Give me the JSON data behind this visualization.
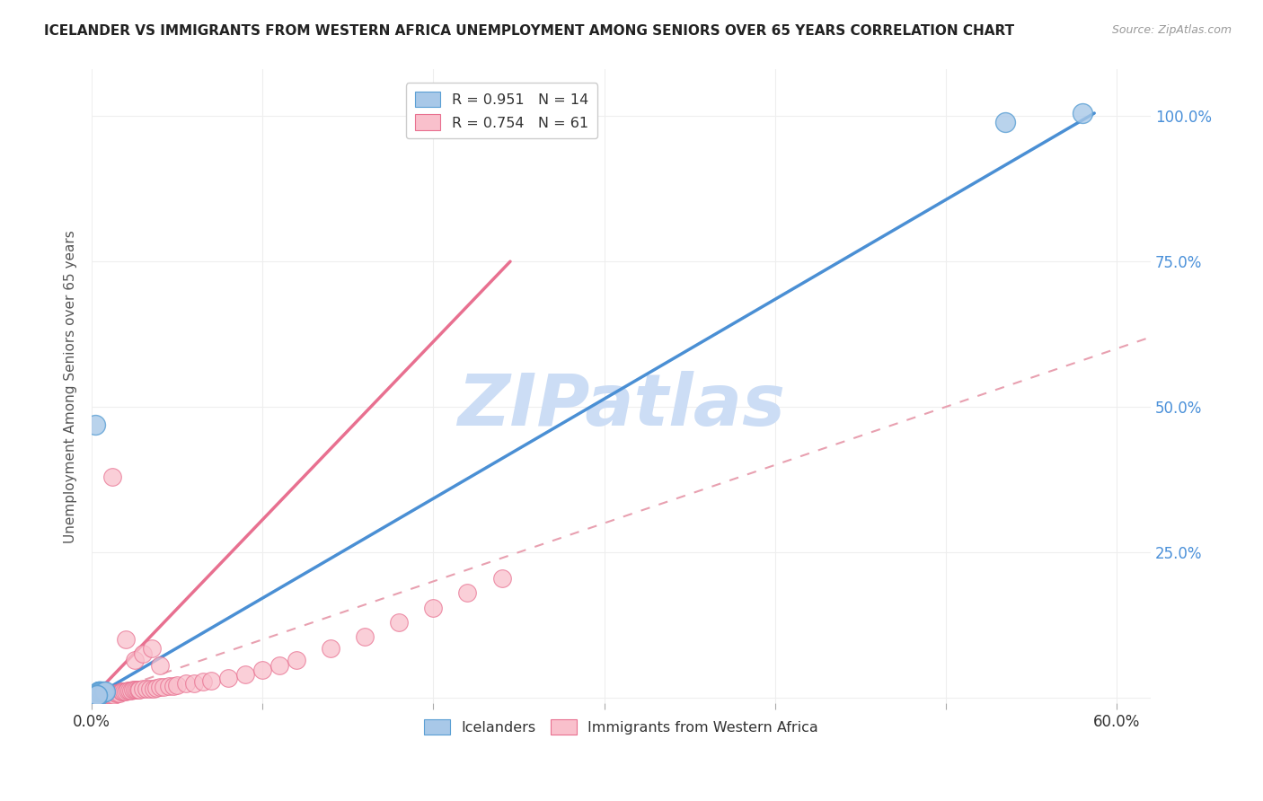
{
  "title": "ICELANDER VS IMMIGRANTS FROM WESTERN AFRICA UNEMPLOYMENT AMONG SENIORS OVER 65 YEARS CORRELATION CHART",
  "source": "Source: ZipAtlas.com",
  "ylabel": "Unemployment Among Seniors over 65 years",
  "xlim": [
    0.0,
    0.62
  ],
  "ylim": [
    -0.01,
    1.08
  ],
  "legend_blue_label": "R = 0.951   N = 14",
  "legend_pink_label": "R = 0.754   N = 61",
  "legend_bottom_blue": "Icelanders",
  "legend_bottom_pink": "Immigrants from Western Africa",
  "blue_color": "#a8c8e8",
  "pink_color": "#f9c0cc",
  "blue_edge_color": "#5a9fd4",
  "pink_edge_color": "#e87090",
  "blue_line_color": "#4a8fd4",
  "pink_line_color": "#e87090",
  "diagonal_color": "#e8a0b0",
  "watermark_color": "#ccddf5",
  "blue_scatter_x": [
    0.002,
    0.004,
    0.004,
    0.004,
    0.004,
    0.005,
    0.005,
    0.006,
    0.007,
    0.008,
    0.003,
    0.003,
    0.535,
    0.58
  ],
  "blue_scatter_y": [
    0.47,
    0.005,
    0.01,
    0.01,
    0.01,
    0.01,
    0.01,
    0.01,
    0.01,
    0.01,
    0.005,
    0.005,
    0.99,
    1.005
  ],
  "pink_scatter_x": [
    0.001,
    0.002,
    0.003,
    0.004,
    0.005,
    0.005,
    0.006,
    0.007,
    0.007,
    0.008,
    0.009,
    0.01,
    0.011,
    0.012,
    0.013,
    0.014,
    0.015,
    0.016,
    0.017,
    0.018,
    0.019,
    0.02,
    0.021,
    0.022,
    0.023,
    0.024,
    0.025,
    0.026,
    0.027,
    0.028,
    0.03,
    0.032,
    0.034,
    0.036,
    0.038,
    0.04,
    0.042,
    0.045,
    0.048,
    0.05,
    0.055,
    0.06,
    0.065,
    0.07,
    0.08,
    0.09,
    0.1,
    0.11,
    0.12,
    0.14,
    0.16,
    0.18,
    0.2,
    0.22,
    0.24,
    0.012,
    0.02,
    0.025,
    0.03,
    0.035,
    0.04
  ],
  "pink_scatter_y": [
    0.005,
    0.005,
    0.005,
    0.005,
    0.005,
    0.005,
    0.005,
    0.005,
    0.005,
    0.005,
    0.005,
    0.005,
    0.005,
    0.005,
    0.005,
    0.008,
    0.008,
    0.008,
    0.01,
    0.01,
    0.01,
    0.01,
    0.012,
    0.012,
    0.012,
    0.013,
    0.013,
    0.013,
    0.014,
    0.014,
    0.015,
    0.015,
    0.016,
    0.016,
    0.017,
    0.018,
    0.019,
    0.02,
    0.02,
    0.022,
    0.024,
    0.025,
    0.027,
    0.029,
    0.034,
    0.04,
    0.048,
    0.056,
    0.065,
    0.085,
    0.105,
    0.13,
    0.155,
    0.18,
    0.205,
    0.38,
    0.1,
    0.065,
    0.075,
    0.085,
    0.055
  ],
  "blue_line_x": [
    0.0,
    0.587
  ],
  "blue_line_y": [
    0.0,
    1.005
  ],
  "pink_line_x": [
    0.0,
    0.245
  ],
  "pink_line_y": [
    0.0,
    0.75
  ],
  "background_color": "#ffffff",
  "grid_color": "#eeeeee"
}
